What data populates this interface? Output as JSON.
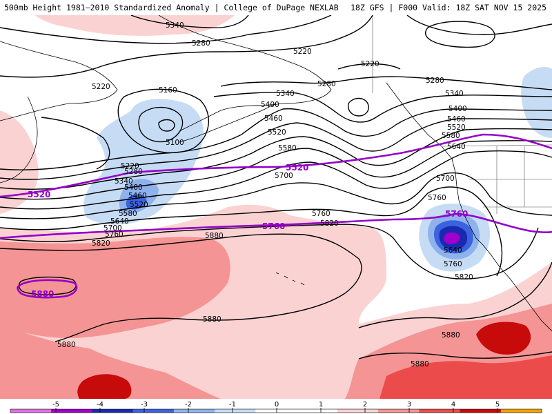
{
  "header": {
    "title": "500mb Height 1981–2010 Standardized Anomaly | College of DuPage NEXLAB",
    "valid": "18Z GFS | F000 Valid: 18Z SAT NOV 15 2025"
  },
  "map": {
    "height_contour_labels": [
      "5340",
      "5280",
      "5220",
      "5220",
      "5160",
      "5100",
      "5220",
      "5280",
      "5340",
      "5400",
      "5460",
      "5520",
      "5580",
      "5640",
      "5700",
      "5760",
      "5820",
      "5880",
      "5340",
      "5400",
      "5460",
      "5520",
      "5580",
      "5700",
      "5760",
      "5820",
      "5880",
      "5880",
      "5280",
      "5220",
      "5280",
      "5340",
      "5400",
      "5460",
      "5520",
      "5580",
      "5640",
      "5700",
      "5760",
      "5640",
      "5760",
      "5820",
      "5880",
      "5880"
    ],
    "reference_contour_labels": [
      "5520",
      "5520",
      "5760",
      "5760",
      "5880"
    ],
    "colors": {
      "anomaly_neg1": "#c6dcf5",
      "anomaly_neg2": "#8fb2ec",
      "anomaly_neg3": "#3a63df",
      "anomaly_neg4": "#1a29b0",
      "anomaly_neg5": "#a000cc",
      "anomaly_pos1": "#fbd2d2",
      "anomaly_pos2": "#f59494",
      "anomaly_pos3": "#ec4b4b",
      "anomaly_pos4": "#c70a0a",
      "reference_contour": "#9400c8",
      "height_contour": "#000000",
      "coastline": "#000000"
    }
  },
  "legend": {
    "ticks": [
      "-5",
      "-4",
      "-3",
      "-2",
      "-1",
      "0",
      "1",
      "2",
      "3",
      "4",
      "5"
    ],
    "colors": [
      "#e070e0",
      "#a000cc",
      "#1a29b0",
      "#3a63df",
      "#8fb2ec",
      "#c6dcf5",
      "#ffffff",
      "#ffffff",
      "#fbd2d2",
      "#f59494",
      "#ec4b4b",
      "#c70a0a",
      "#f5a300"
    ]
  }
}
